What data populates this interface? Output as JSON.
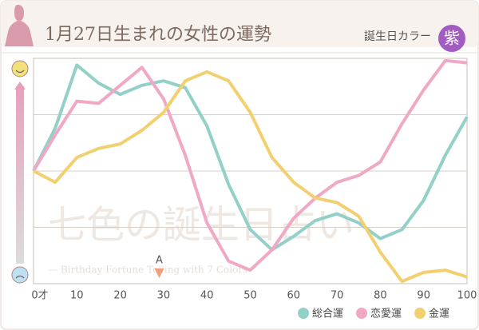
{
  "chart_data": {
    "type": "line",
    "title": "1月27日生まれの女性の運勢",
    "color_label": "誕生日カラー",
    "color_name": "紫",
    "color_swatch": "#a05cc0",
    "watermark": "七色の誕生日占い",
    "watermark_sub": "— Birthday Fortune Telling with 7 Colors",
    "annotation": {
      "text": "A",
      "x": 29,
      "color": "#f0a080"
    },
    "x": [
      0,
      5,
      10,
      15,
      20,
      25,
      30,
      35,
      40,
      45,
      50,
      55,
      60,
      65,
      70,
      75,
      80,
      85,
      90,
      95,
      100
    ],
    "xlim": [
      0,
      100
    ],
    "xticks": [
      {
        "value": 0,
        "label": "0才"
      },
      10,
      20,
      30,
      40,
      50,
      60,
      70,
      80,
      90,
      100
    ],
    "ylim": [
      0,
      100
    ],
    "yticks": [
      25,
      50,
      75
    ],
    "grid": true,
    "series": [
      {
        "name": "総合運",
        "color": "#92d0c8",
        "values": [
          50,
          69,
          97,
          89,
          84,
          88,
          90,
          87,
          70,
          44,
          24,
          15,
          21,
          28,
          31,
          27,
          20,
          24,
          37,
          57,
          74
        ]
      },
      {
        "name": "恋愛運",
        "color": "#f0a8c4",
        "values": [
          50,
          66,
          81,
          80,
          88,
          96,
          82,
          57,
          27,
          10,
          6,
          15,
          29,
          38,
          45,
          48,
          54,
          71,
          86,
          99,
          98
        ]
      },
      {
        "name": "金運",
        "color": "#f2d070",
        "values": [
          50,
          45,
          56,
          60,
          62,
          68,
          76,
          90,
          94,
          90,
          76,
          56,
          45,
          38,
          36,
          30,
          14,
          1,
          5,
          6,
          3
        ]
      }
    ]
  }
}
